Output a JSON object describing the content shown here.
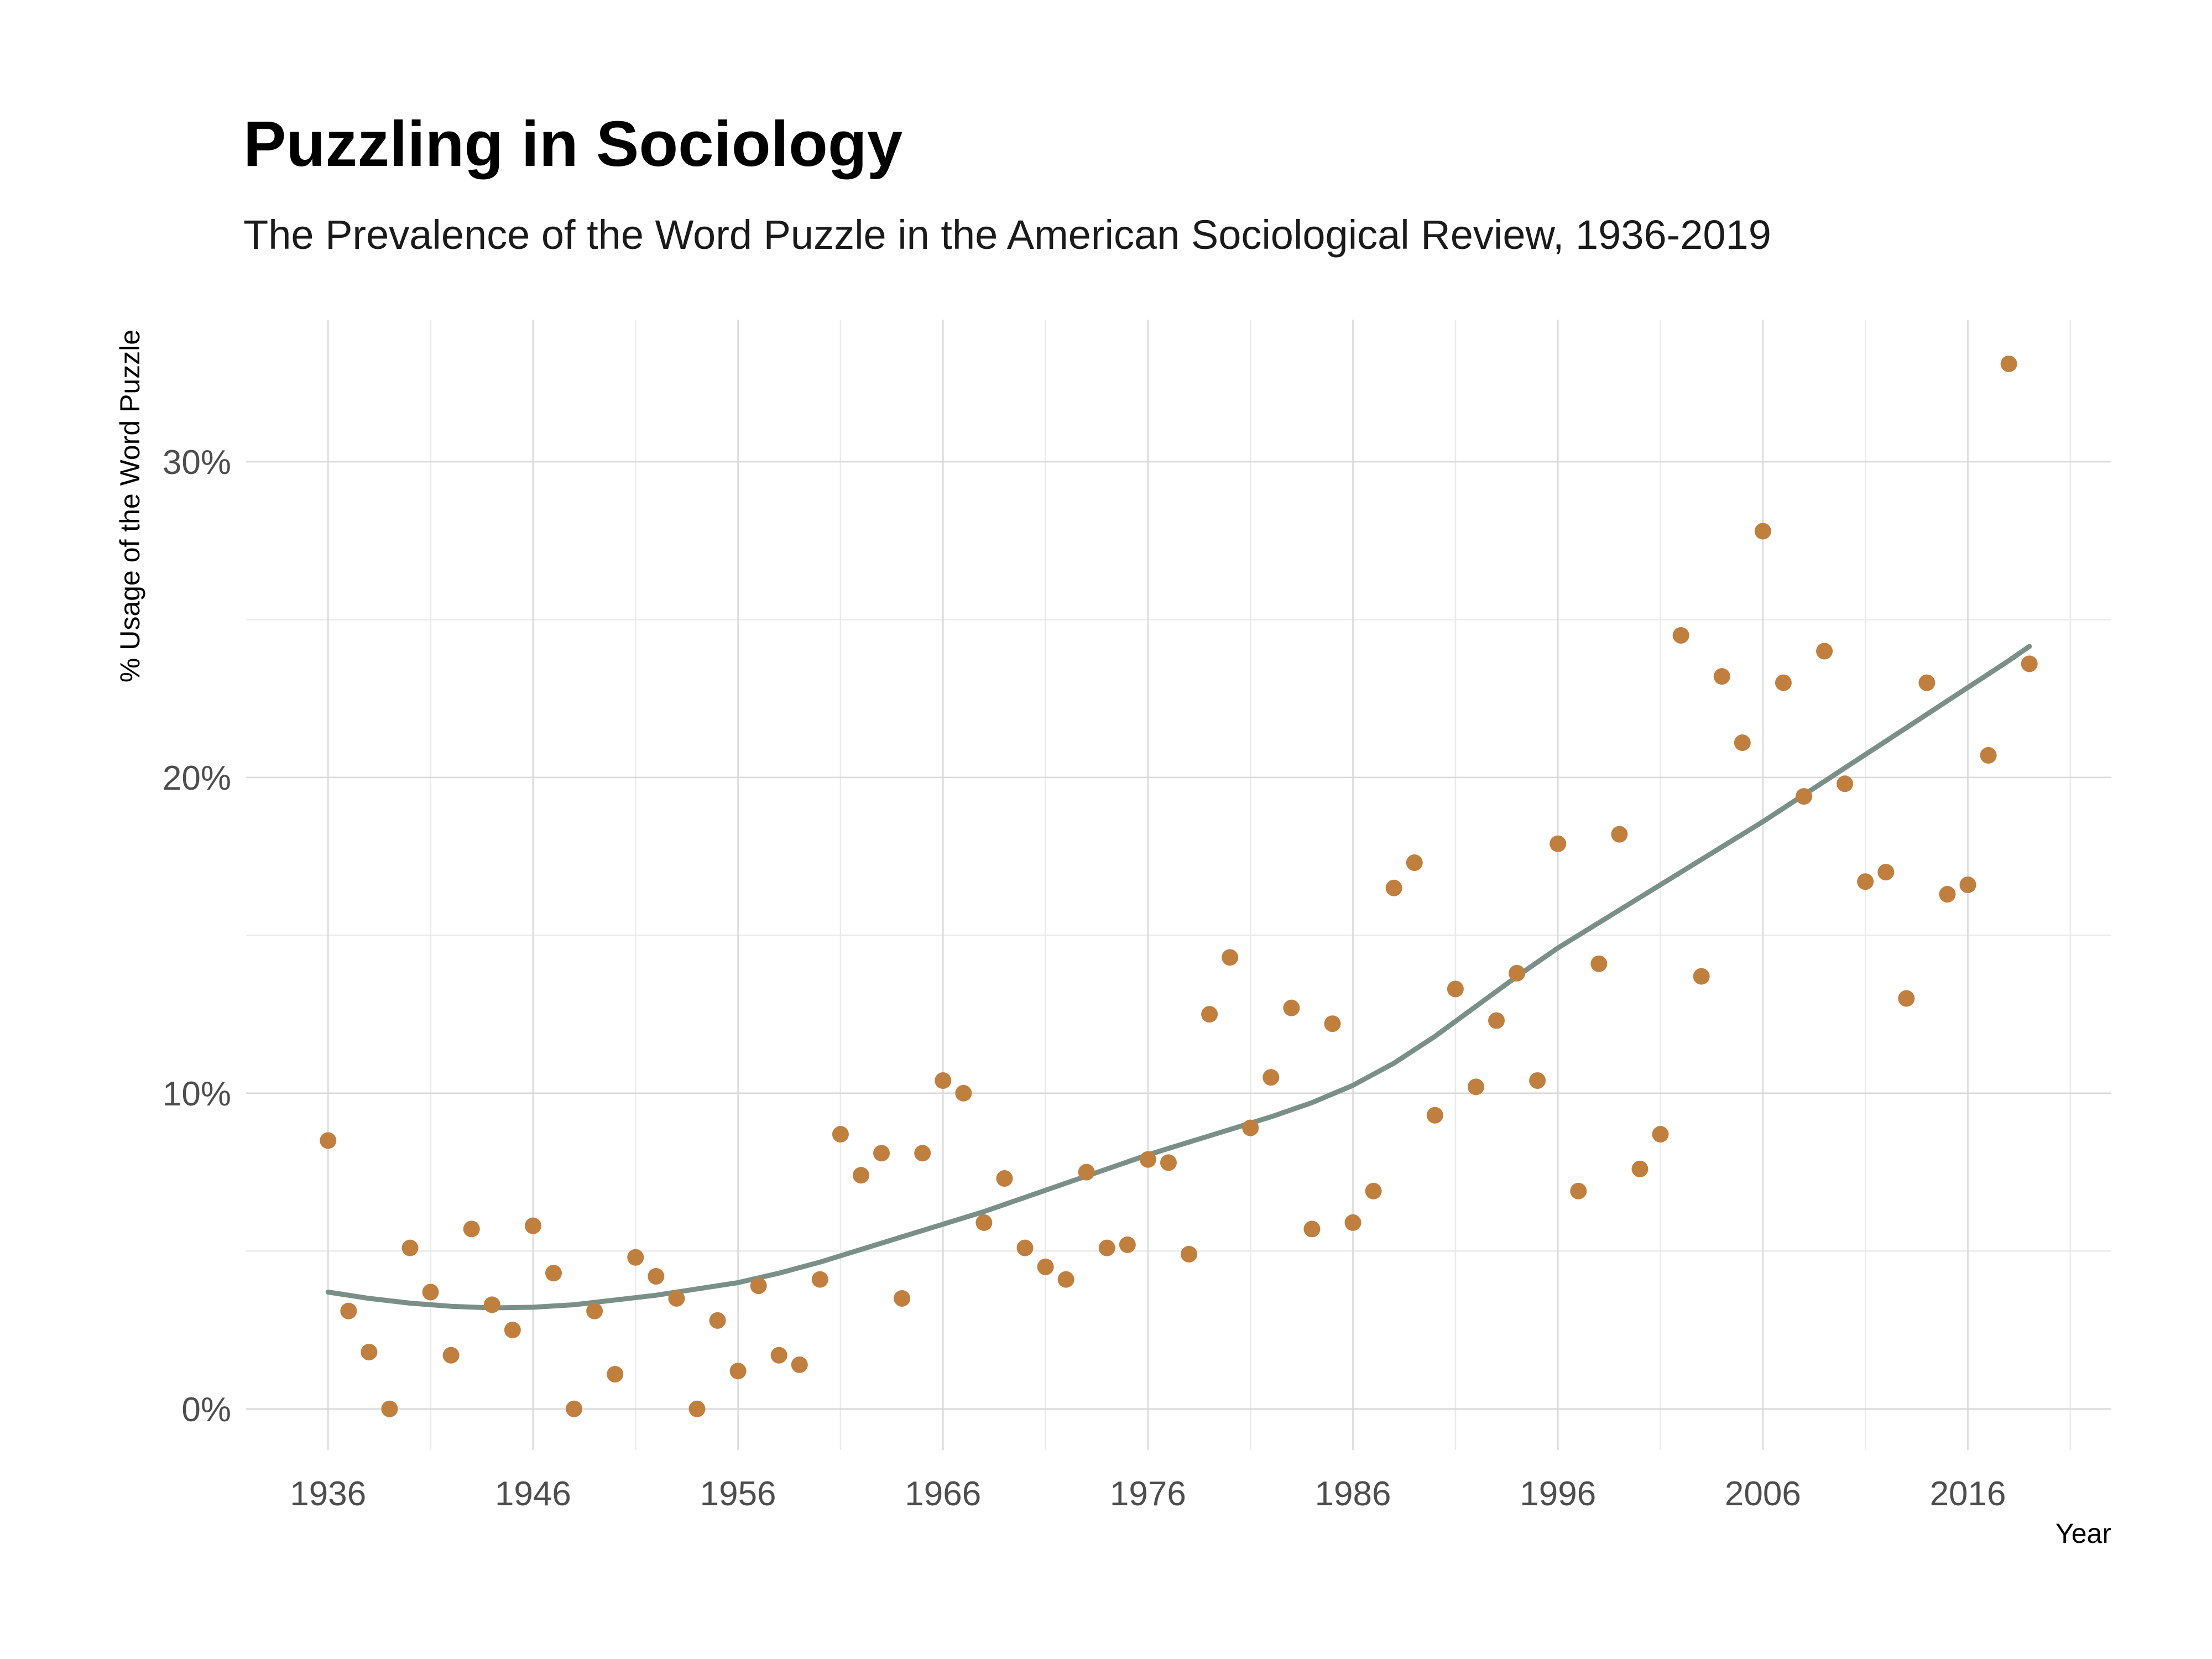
{
  "chart_data": {
    "type": "scatter",
    "title": "Puzzling in Sociology",
    "subtitle": "The Prevalence of the Word Puzzle in the American Sociological Review, 1936-2019",
    "xlabel": "Year",
    "ylabel": "% Usage of the Word Puzzle",
    "xlim": [
      1932,
      2023
    ],
    "ylim": [
      -1.3,
      34.5
    ],
    "x_ticks": [
      1936,
      1946,
      1956,
      1966,
      1976,
      1986,
      1996,
      2006,
      2016
    ],
    "x_tick_labels": [
      "1936",
      "1946",
      "1956",
      "1966",
      "1976",
      "1986",
      "1996",
      "2006",
      "2016"
    ],
    "y_ticks": [
      0,
      10,
      20,
      30
    ],
    "y_tick_labels": [
      "0%",
      "10%",
      "20%",
      "30%"
    ],
    "y_minor_ticks": [
      5,
      15,
      25
    ],
    "x_minor_ticks": [
      1941,
      1951,
      1961,
      1971,
      1981,
      1991,
      2001,
      2011,
      2021
    ],
    "grid": true,
    "legend": "none",
    "colors": {
      "points": "#c17f3e",
      "trend": "#7a8f88",
      "grid": "#d9d9d9"
    },
    "series": [
      {
        "type": "scatter",
        "x": [
          1936,
          1937,
          1938,
          1939,
          1940,
          1941,
          1942,
          1943,
          1944,
          1945,
          1946,
          1947,
          1948,
          1949,
          1950,
          1951,
          1952,
          1953,
          1954,
          1955,
          1956,
          1957,
          1958,
          1959,
          1960,
          1961,
          1962,
          1963,
          1964,
          1965,
          1966,
          1967,
          1968,
          1969,
          1970,
          1971,
          1972,
          1973,
          1974,
          1975,
          1976,
          1977,
          1978,
          1979,
          1980,
          1981,
          1982,
          1983,
          1984,
          1985,
          1986,
          1987,
          1988,
          1989,
          1990,
          1991,
          1992,
          1993,
          1994,
          1995,
          1996,
          1997,
          1998,
          1999,
          2000,
          2001,
          2002,
          2003,
          2004,
          2005,
          2006,
          2007,
          2008,
          2009,
          2010,
          2011,
          2012,
          2013,
          2014,
          2015,
          2016,
          2017,
          2018,
          2019
        ],
        "y": [
          8.5,
          3.1,
          1.8,
          0.0,
          5.1,
          3.7,
          1.7,
          5.7,
          3.3,
          2.5,
          5.8,
          4.3,
          0.0,
          3.1,
          1.1,
          4.8,
          4.2,
          3.5,
          0.0,
          2.8,
          1.2,
          3.9,
          1.7,
          1.4,
          4.1,
          8.7,
          7.4,
          8.1,
          3.5,
          8.1,
          10.4,
          10.0,
          5.9,
          7.3,
          5.1,
          4.5,
          4.1,
          7.5,
          5.1,
          5.2,
          7.9,
          7.8,
          4.9,
          12.5,
          14.3,
          8.9,
          10.5,
          12.7,
          5.7,
          12.2,
          5.9,
          6.9,
          16.5,
          17.3,
          9.3,
          13.3,
          10.2,
          12.3,
          13.8,
          10.4,
          17.9,
          6.9,
          14.1,
          18.2,
          7.6,
          8.7,
          24.5,
          13.7,
          23.2,
          21.1,
          27.8,
          23.0,
          19.4,
          24.0,
          19.8,
          16.7,
          17.0,
          13.0,
          23.0,
          16.3,
          16.6,
          20.7,
          33.1,
          23.6
        ]
      },
      {
        "type": "line",
        "x": [
          1936,
          1938,
          1940,
          1942,
          1944,
          1946,
          1948,
          1950,
          1952,
          1954,
          1956,
          1958,
          1960,
          1962,
          1964,
          1966,
          1968,
          1970,
          1972,
          1974,
          1976,
          1978,
          1980,
          1982,
          1984,
          1986,
          1988,
          1990,
          1992,
          1994,
          1996,
          1998,
          2000,
          2002,
          2004,
          2006,
          2008,
          2010,
          2012,
          2014,
          2016,
          2018,
          2019
        ],
        "y": [
          3.7,
          3.5,
          3.35,
          3.25,
          3.2,
          3.22,
          3.3,
          3.45,
          3.6,
          3.8,
          4.0,
          4.3,
          4.65,
          5.05,
          5.45,
          5.85,
          6.25,
          6.7,
          7.15,
          7.6,
          8.05,
          8.45,
          8.85,
          9.25,
          9.7,
          10.25,
          10.95,
          11.8,
          12.75,
          13.7,
          14.6,
          15.4,
          16.2,
          17.0,
          17.8,
          18.6,
          19.45,
          20.3,
          21.15,
          22.0,
          22.85,
          23.7,
          24.15
        ]
      }
    ]
  }
}
